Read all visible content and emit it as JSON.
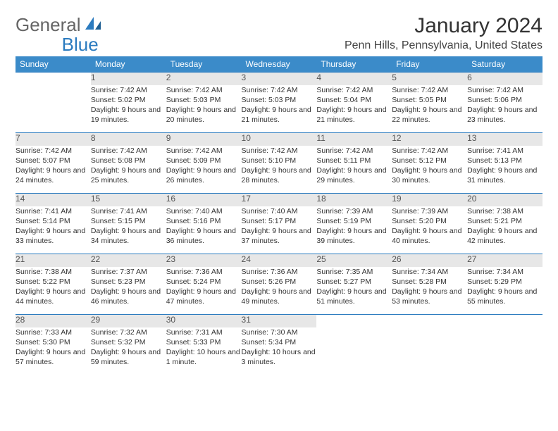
{
  "brand": {
    "general": "General",
    "blue": "Blue"
  },
  "title": "January 2024",
  "location": "Penn Hills, Pennsylvania, United States",
  "weekdays": [
    "Sunday",
    "Monday",
    "Tuesday",
    "Wednesday",
    "Thursday",
    "Friday",
    "Saturday"
  ],
  "colors": {
    "header_bg": "#3b8bc9",
    "header_text": "#ffffff",
    "daynum_bg": "#e7e7e7",
    "border": "#2b7bbf"
  },
  "weeks": [
    [
      null,
      {
        "n": "1",
        "sr": "7:42 AM",
        "ss": "5:02 PM",
        "dl": "9 hours and 19 minutes."
      },
      {
        "n": "2",
        "sr": "7:42 AM",
        "ss": "5:03 PM",
        "dl": "9 hours and 20 minutes."
      },
      {
        "n": "3",
        "sr": "7:42 AM",
        "ss": "5:03 PM",
        "dl": "9 hours and 21 minutes."
      },
      {
        "n": "4",
        "sr": "7:42 AM",
        "ss": "5:04 PM",
        "dl": "9 hours and 21 minutes."
      },
      {
        "n": "5",
        "sr": "7:42 AM",
        "ss": "5:05 PM",
        "dl": "9 hours and 22 minutes."
      },
      {
        "n": "6",
        "sr": "7:42 AM",
        "ss": "5:06 PM",
        "dl": "9 hours and 23 minutes."
      }
    ],
    [
      {
        "n": "7",
        "sr": "7:42 AM",
        "ss": "5:07 PM",
        "dl": "9 hours and 24 minutes."
      },
      {
        "n": "8",
        "sr": "7:42 AM",
        "ss": "5:08 PM",
        "dl": "9 hours and 25 minutes."
      },
      {
        "n": "9",
        "sr": "7:42 AM",
        "ss": "5:09 PM",
        "dl": "9 hours and 26 minutes."
      },
      {
        "n": "10",
        "sr": "7:42 AM",
        "ss": "5:10 PM",
        "dl": "9 hours and 28 minutes."
      },
      {
        "n": "11",
        "sr": "7:42 AM",
        "ss": "5:11 PM",
        "dl": "9 hours and 29 minutes."
      },
      {
        "n": "12",
        "sr": "7:42 AM",
        "ss": "5:12 PM",
        "dl": "9 hours and 30 minutes."
      },
      {
        "n": "13",
        "sr": "7:41 AM",
        "ss": "5:13 PM",
        "dl": "9 hours and 31 minutes."
      }
    ],
    [
      {
        "n": "14",
        "sr": "7:41 AM",
        "ss": "5:14 PM",
        "dl": "9 hours and 33 minutes."
      },
      {
        "n": "15",
        "sr": "7:41 AM",
        "ss": "5:15 PM",
        "dl": "9 hours and 34 minutes."
      },
      {
        "n": "16",
        "sr": "7:40 AM",
        "ss": "5:16 PM",
        "dl": "9 hours and 36 minutes."
      },
      {
        "n": "17",
        "sr": "7:40 AM",
        "ss": "5:17 PM",
        "dl": "9 hours and 37 minutes."
      },
      {
        "n": "18",
        "sr": "7:39 AM",
        "ss": "5:19 PM",
        "dl": "9 hours and 39 minutes."
      },
      {
        "n": "19",
        "sr": "7:39 AM",
        "ss": "5:20 PM",
        "dl": "9 hours and 40 minutes."
      },
      {
        "n": "20",
        "sr": "7:38 AM",
        "ss": "5:21 PM",
        "dl": "9 hours and 42 minutes."
      }
    ],
    [
      {
        "n": "21",
        "sr": "7:38 AM",
        "ss": "5:22 PM",
        "dl": "9 hours and 44 minutes."
      },
      {
        "n": "22",
        "sr": "7:37 AM",
        "ss": "5:23 PM",
        "dl": "9 hours and 46 minutes."
      },
      {
        "n": "23",
        "sr": "7:36 AM",
        "ss": "5:24 PM",
        "dl": "9 hours and 47 minutes."
      },
      {
        "n": "24",
        "sr": "7:36 AM",
        "ss": "5:26 PM",
        "dl": "9 hours and 49 minutes."
      },
      {
        "n": "25",
        "sr": "7:35 AM",
        "ss": "5:27 PM",
        "dl": "9 hours and 51 minutes."
      },
      {
        "n": "26",
        "sr": "7:34 AM",
        "ss": "5:28 PM",
        "dl": "9 hours and 53 minutes."
      },
      {
        "n": "27",
        "sr": "7:34 AM",
        "ss": "5:29 PM",
        "dl": "9 hours and 55 minutes."
      }
    ],
    [
      {
        "n": "28",
        "sr": "7:33 AM",
        "ss": "5:30 PM",
        "dl": "9 hours and 57 minutes."
      },
      {
        "n": "29",
        "sr": "7:32 AM",
        "ss": "5:32 PM",
        "dl": "9 hours and 59 minutes."
      },
      {
        "n": "30",
        "sr": "7:31 AM",
        "ss": "5:33 PM",
        "dl": "10 hours and 1 minute."
      },
      {
        "n": "31",
        "sr": "7:30 AM",
        "ss": "5:34 PM",
        "dl": "10 hours and 3 minutes."
      },
      null,
      null,
      null
    ]
  ]
}
